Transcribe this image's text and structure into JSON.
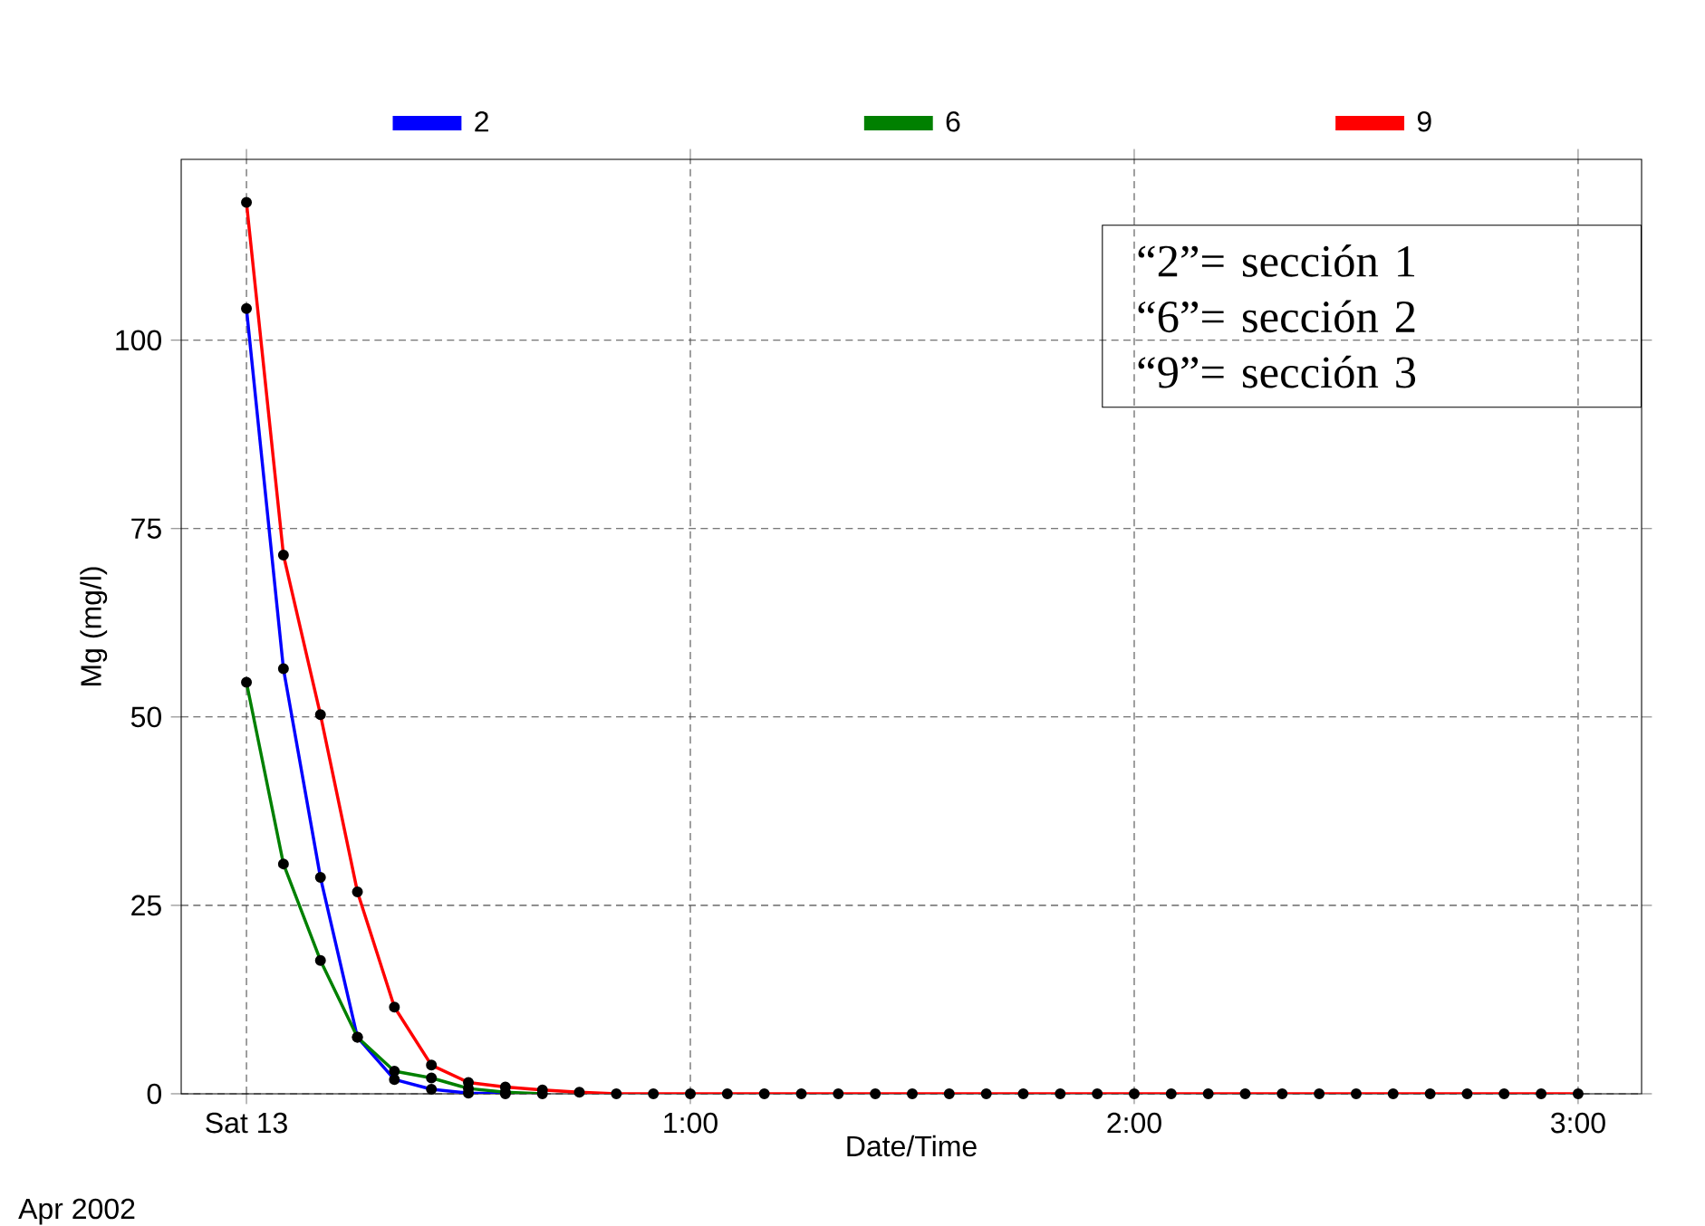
{
  "chart_data": {
    "type": "line",
    "xlabel": "Date/Time",
    "ylabel": "Mg (mg/l)",
    "x": [
      0,
      0.0833,
      0.1667,
      0.25,
      0.3333,
      0.4167,
      0.5,
      0.5833,
      0.6667,
      0.75,
      0.8333,
      0.9167,
      1,
      1.0833,
      1.1667,
      1.25,
      1.3333,
      1.4167,
      1.5,
      1.5833,
      1.6667,
      1.75,
      1.8333,
      1.9167,
      2,
      2.0833,
      2.1667,
      2.25,
      2.3333,
      2.4167,
      2.5,
      2.5833,
      2.6667,
      2.75,
      2.8333,
      2.9167,
      3
    ],
    "series": [
      {
        "name": "2",
        "color": "#0000ff",
        "values": [
          104.2,
          56.4,
          28.7,
          7.5,
          1.9,
          0.6,
          0.1,
          0,
          null,
          null,
          null,
          null,
          null,
          null,
          null,
          null,
          null,
          null,
          null,
          null,
          null,
          null,
          null,
          null,
          null,
          null,
          null,
          null,
          null,
          null,
          null,
          null,
          null,
          null,
          null,
          null,
          null
        ]
      },
      {
        "name": "6",
        "color": "#008000",
        "values": [
          54.6,
          30.5,
          17.7,
          7.5,
          3.0,
          2.1,
          0.7,
          0.2,
          0,
          null,
          null,
          null,
          null,
          null,
          null,
          null,
          null,
          null,
          null,
          null,
          null,
          null,
          null,
          null,
          null,
          null,
          null,
          null,
          null,
          null,
          null,
          null,
          null,
          null,
          null,
          null,
          null
        ]
      },
      {
        "name": "9",
        "color": "#ff0000",
        "values": [
          118.3,
          71.5,
          50.3,
          26.8,
          11.5,
          3.8,
          1.5,
          0.9,
          0.5,
          0.2,
          0,
          0,
          0,
          0,
          0,
          0,
          0,
          0,
          0,
          0,
          0,
          0,
          0,
          0,
          0,
          0,
          0,
          0,
          0,
          0,
          0,
          0,
          0,
          0,
          0,
          0,
          0
        ]
      }
    ],
    "xlim": [
      -0.147,
      3.143
    ],
    "xticks": [
      {
        "value": 0,
        "label": "Sat 13"
      },
      {
        "value": 1,
        "label": "1:00"
      },
      {
        "value": 2,
        "label": "2:00"
      },
      {
        "value": 3,
        "label": "3:00"
      }
    ],
    "ylim": [
      0,
      124
    ],
    "yticks": [
      0,
      25,
      50,
      75,
      100
    ],
    "grid": true,
    "legend": "top",
    "marker": "circle",
    "line_style": "solid",
    "annotations": [
      "Apr 2002",
      "“2”= sección 1",
      "“6”= sección 2",
      "“9”= sección 3"
    ]
  }
}
